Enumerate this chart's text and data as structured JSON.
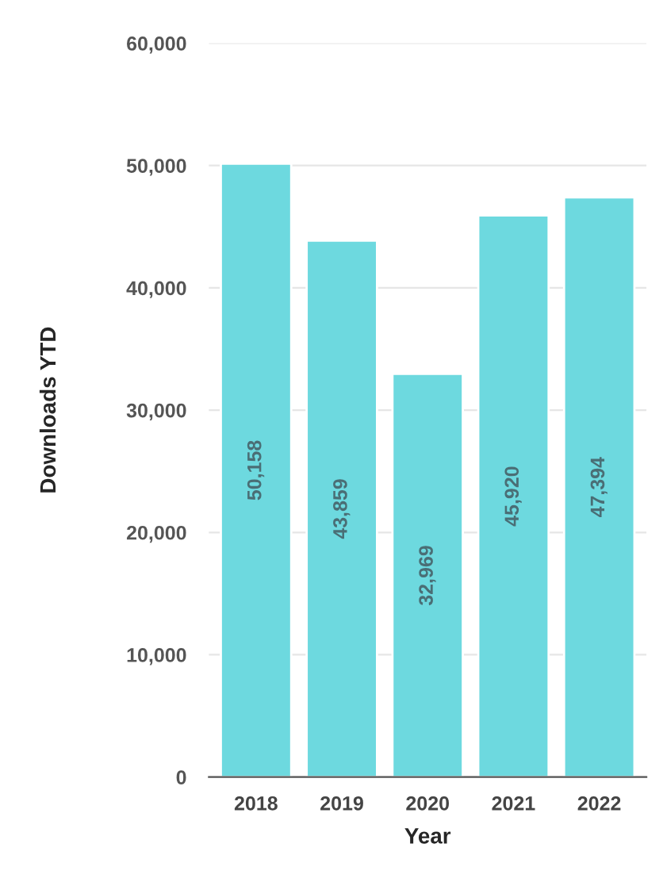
{
  "chart_data": {
    "type": "bar",
    "xlabel": "Year",
    "ylabel": "Downloads YTD",
    "categories": [
      "2018",
      "2019",
      "2020",
      "2021",
      "2022"
    ],
    "values": [
      50158,
      43859,
      32969,
      45920,
      47394
    ],
    "color": "#6dd9df",
    "ylim": [
      0,
      60000
    ],
    "yticks": [
      {
        "value": 0,
        "label": "0"
      },
      {
        "value": 10000,
        "label": "10,000"
      },
      {
        "value": 20000,
        "label": "20,000"
      },
      {
        "value": 30000,
        "label": "30,000"
      },
      {
        "value": 40000,
        "label": "40,000"
      },
      {
        "value": 50000,
        "label": "50,000"
      },
      {
        "value": 60000,
        "label": "60,000"
      }
    ],
    "value_labels": [
      "50,158",
      "43,859",
      "32,969",
      "45,920",
      "47,394"
    ],
    "grid": "y"
  }
}
